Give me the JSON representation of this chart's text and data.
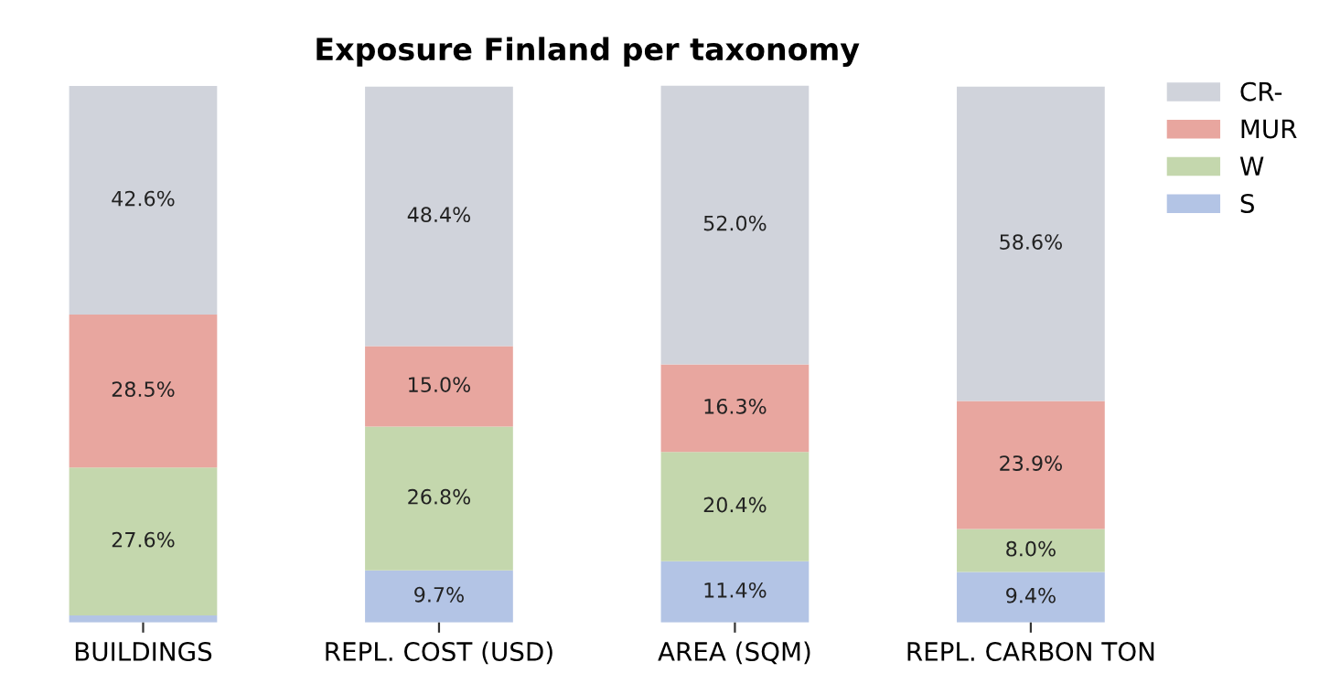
{
  "chart_data": {
    "type": "bar",
    "title": "Exposure Finland per taxonomy",
    "stacked": true,
    "legend": "top right",
    "categories": [
      "BUILDINGS",
      "REPL. COST (USD)",
      "AREA (SQM)",
      "REPL. CARBON TON"
    ],
    "series": [
      {
        "name": "S",
        "color": "#b3c4e5",
        "values": [
          1.3,
          9.7,
          11.4,
          9.4
        ],
        "value_labels": [
          null,
          "9.7%",
          "11.4%",
          "9.4%"
        ]
      },
      {
        "name": "W",
        "color": "#c4d7ad",
        "values": [
          27.6,
          26.8,
          20.4,
          8.0
        ],
        "value_labels": [
          "27.6%",
          "26.8%",
          "20.4%",
          "8.0%"
        ]
      },
      {
        "name": "MUR",
        "color": "#e8a69f",
        "values": [
          28.5,
          15.0,
          16.3,
          23.9
        ],
        "value_labels": [
          "28.5%",
          "15.0%",
          "16.3%",
          "23.9%"
        ]
      },
      {
        "name": "CR-",
        "color": "#d0d3db",
        "values": [
          42.6,
          48.4,
          52.0,
          58.6
        ],
        "value_labels": [
          "42.6%",
          "48.4%",
          "52.0%",
          "58.6%"
        ]
      }
    ]
  }
}
